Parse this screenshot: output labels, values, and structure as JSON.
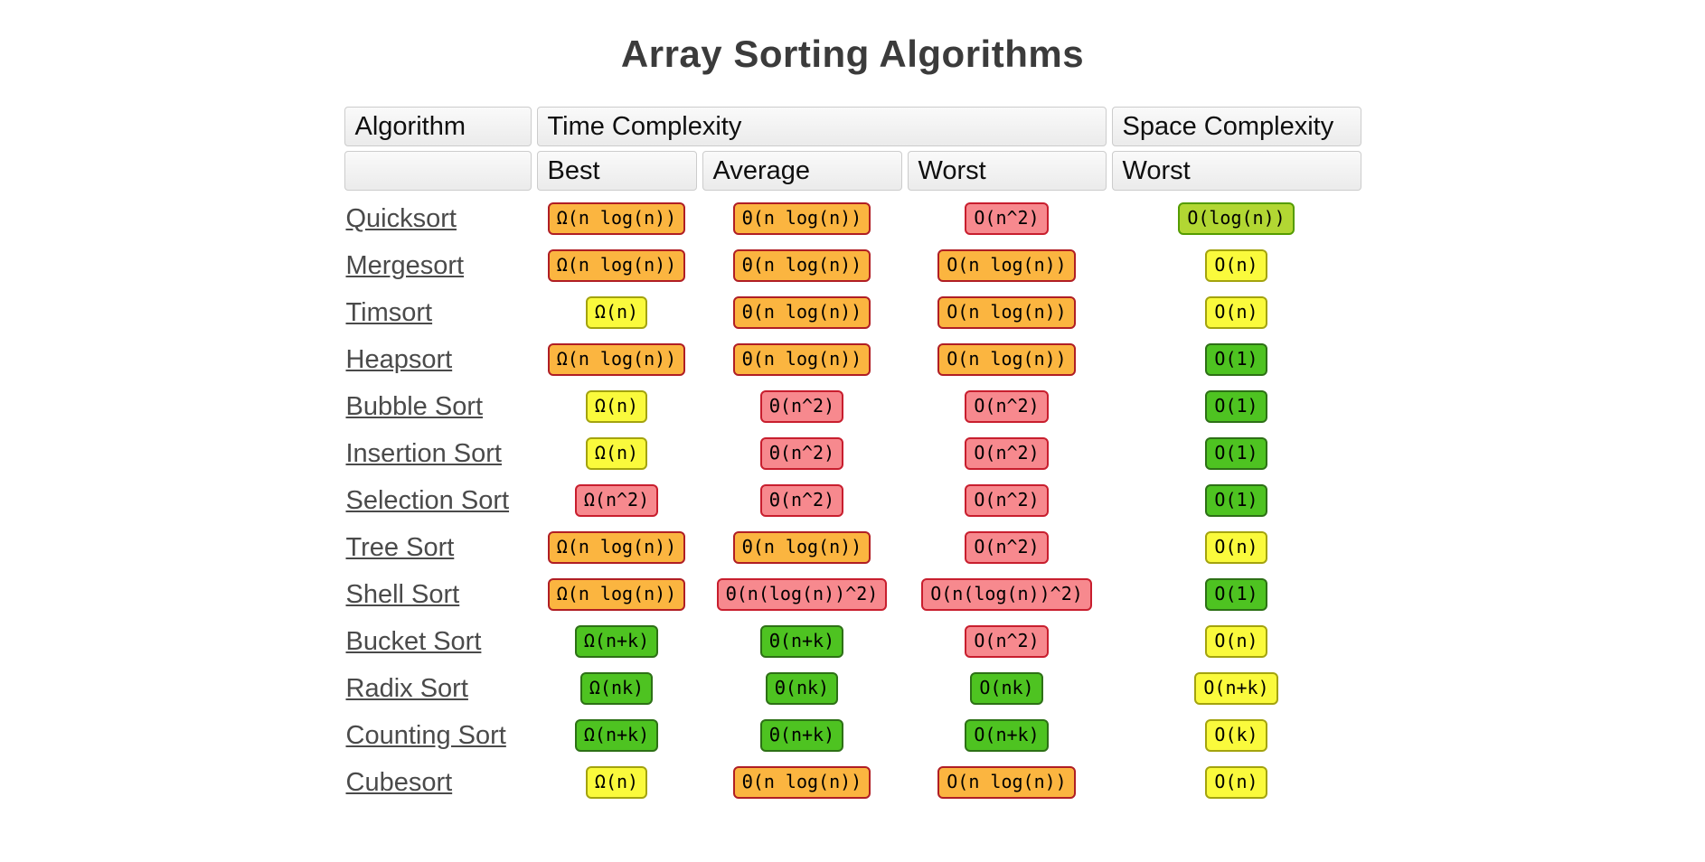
{
  "page": {
    "title": "Array Sorting Algorithms"
  },
  "table": {
    "group_headers": {
      "algorithm": "Algorithm",
      "time": "Time Complexity",
      "space": "Space Complexity"
    },
    "case_headers": {
      "best": "Best",
      "average": "Average",
      "worst": "Worst",
      "space_worst": "Worst"
    },
    "colors": {
      "orange": {
        "bg": "#FBB540",
        "border": "#B01E24"
      },
      "red": {
        "bg": "#F7898E",
        "border": "#C81E2E"
      },
      "yellow": {
        "bg": "#FAFA3C",
        "border": "#A3A30E"
      },
      "green": {
        "bg": "#4EC321",
        "border": "#2D7016"
      },
      "yellowgreen": {
        "bg": "#B2D733",
        "border": "#549C00"
      }
    },
    "rows": [
      {
        "name": "Quicksort",
        "best": {
          "text": "Ω(n log(n))",
          "level": "orange"
        },
        "average": {
          "text": "Θ(n log(n))",
          "level": "orange"
        },
        "worst": {
          "text": "O(n^2)",
          "level": "red"
        },
        "space": {
          "text": "O(log(n))",
          "level": "yellowgreen"
        }
      },
      {
        "name": "Mergesort",
        "best": {
          "text": "Ω(n log(n))",
          "level": "orange"
        },
        "average": {
          "text": "Θ(n log(n))",
          "level": "orange"
        },
        "worst": {
          "text": "O(n log(n))",
          "level": "orange"
        },
        "space": {
          "text": "O(n)",
          "level": "yellow"
        }
      },
      {
        "name": "Timsort",
        "best": {
          "text": "Ω(n)",
          "level": "yellow"
        },
        "average": {
          "text": "Θ(n log(n))",
          "level": "orange"
        },
        "worst": {
          "text": "O(n log(n))",
          "level": "orange"
        },
        "space": {
          "text": "O(n)",
          "level": "yellow"
        }
      },
      {
        "name": "Heapsort",
        "best": {
          "text": "Ω(n log(n))",
          "level": "orange"
        },
        "average": {
          "text": "Θ(n log(n))",
          "level": "orange"
        },
        "worst": {
          "text": "O(n log(n))",
          "level": "orange"
        },
        "space": {
          "text": "O(1)",
          "level": "green"
        }
      },
      {
        "name": "Bubble Sort",
        "best": {
          "text": "Ω(n)",
          "level": "yellow"
        },
        "average": {
          "text": "Θ(n^2)",
          "level": "red"
        },
        "worst": {
          "text": "O(n^2)",
          "level": "red"
        },
        "space": {
          "text": "O(1)",
          "level": "green"
        }
      },
      {
        "name": "Insertion Sort",
        "best": {
          "text": "Ω(n)",
          "level": "yellow"
        },
        "average": {
          "text": "Θ(n^2)",
          "level": "red"
        },
        "worst": {
          "text": "O(n^2)",
          "level": "red"
        },
        "space": {
          "text": "O(1)",
          "level": "green"
        }
      },
      {
        "name": "Selection Sort",
        "best": {
          "text": "Ω(n^2)",
          "level": "red"
        },
        "average": {
          "text": "Θ(n^2)",
          "level": "red"
        },
        "worst": {
          "text": "O(n^2)",
          "level": "red"
        },
        "space": {
          "text": "O(1)",
          "level": "green"
        }
      },
      {
        "name": "Tree Sort",
        "best": {
          "text": "Ω(n log(n))",
          "level": "orange"
        },
        "average": {
          "text": "Θ(n log(n))",
          "level": "orange"
        },
        "worst": {
          "text": "O(n^2)",
          "level": "red"
        },
        "space": {
          "text": "O(n)",
          "level": "yellow"
        }
      },
      {
        "name": "Shell Sort",
        "best": {
          "text": "Ω(n log(n))",
          "level": "orange"
        },
        "average": {
          "text": "Θ(n(log(n))^2)",
          "level": "red"
        },
        "worst": {
          "text": "O(n(log(n))^2)",
          "level": "red"
        },
        "space": {
          "text": "O(1)",
          "level": "green"
        }
      },
      {
        "name": "Bucket Sort",
        "best": {
          "text": "Ω(n+k)",
          "level": "green"
        },
        "average": {
          "text": "Θ(n+k)",
          "level": "green"
        },
        "worst": {
          "text": "O(n^2)",
          "level": "red"
        },
        "space": {
          "text": "O(n)",
          "level": "yellow"
        }
      },
      {
        "name": "Radix Sort",
        "best": {
          "text": "Ω(nk)",
          "level": "green"
        },
        "average": {
          "text": "Θ(nk)",
          "level": "green"
        },
        "worst": {
          "text": "O(nk)",
          "level": "green"
        },
        "space": {
          "text": "O(n+k)",
          "level": "yellow"
        }
      },
      {
        "name": "Counting Sort",
        "best": {
          "text": "Ω(n+k)",
          "level": "green"
        },
        "average": {
          "text": "Θ(n+k)",
          "level": "green"
        },
        "worst": {
          "text": "O(n+k)",
          "level": "green"
        },
        "space": {
          "text": "O(k)",
          "level": "yellow"
        }
      },
      {
        "name": "Cubesort",
        "best": {
          "text": "Ω(n)",
          "level": "yellow"
        },
        "average": {
          "text": "Θ(n log(n))",
          "level": "orange"
        },
        "worst": {
          "text": "O(n log(n))",
          "level": "orange"
        },
        "space": {
          "text": "O(n)",
          "level": "yellow"
        }
      }
    ]
  }
}
